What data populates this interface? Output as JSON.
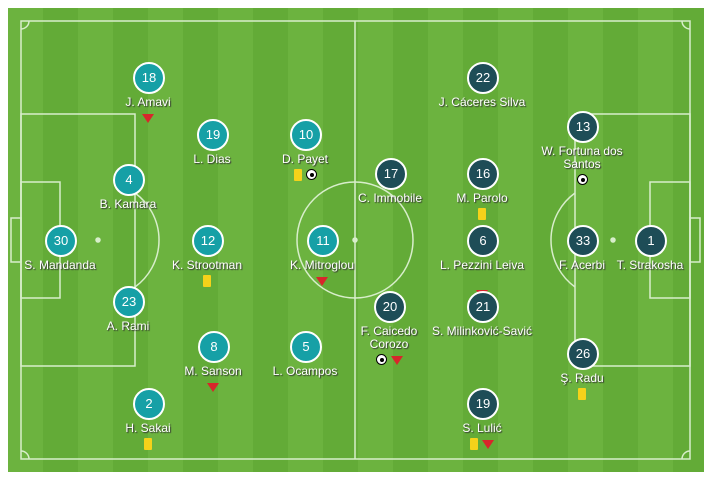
{
  "colors": {
    "home": "#16a0a6",
    "away": "#1e4d57",
    "pitch": "#6cb33f",
    "yellow_card": "#f5d21a",
    "sub_off": "#d8262b"
  },
  "home": [
    {
      "number": "18",
      "name": "J. Amavi",
      "events": [
        "sub-off"
      ]
    },
    {
      "number": "19",
      "name": "L. Dias",
      "events": []
    },
    {
      "number": "10",
      "name": "D. Payet",
      "events": [
        "yellow-card",
        "goal"
      ]
    },
    {
      "number": "4",
      "name": "B. Kamara",
      "events": []
    },
    {
      "number": "30",
      "name": "S. Mandanda",
      "events": []
    },
    {
      "number": "12",
      "name": "K. Strootman",
      "events": [
        "yellow-card"
      ]
    },
    {
      "number": "11",
      "name": "K. Mitroglou",
      "events": [
        "sub-off"
      ]
    },
    {
      "number": "23",
      "name": "A. Rami",
      "events": []
    },
    {
      "number": "8",
      "name": "M. Sanson",
      "events": [
        "sub-off"
      ]
    },
    {
      "number": "5",
      "name": "L. Ocampos",
      "events": []
    },
    {
      "number": "2",
      "name": "H. Sakai",
      "events": [
        "yellow-card"
      ]
    }
  ],
  "away": [
    {
      "number": "22",
      "name": "J. Cáceres Silva",
      "events": []
    },
    {
      "number": "13",
      "name": "W. Fortuna dos Santos",
      "events": [
        "goal"
      ]
    },
    {
      "number": "17",
      "name": "C. Immobile",
      "events": []
    },
    {
      "number": "16",
      "name": "M. Parolo",
      "events": [
        "yellow-card"
      ]
    },
    {
      "number": "6",
      "name": "L. Pezzini Leiva",
      "events": [
        "sub-off"
      ]
    },
    {
      "number": "33",
      "name": "F. Acerbi",
      "events": []
    },
    {
      "number": "1",
      "name": "T. Strakosha",
      "events": []
    },
    {
      "number": "20",
      "name": "F. Caicedo Corozo",
      "events": [
        "goal",
        "sub-off"
      ]
    },
    {
      "number": "21",
      "name": "S. Milinković-Savić",
      "events": []
    },
    {
      "number": "26",
      "name": "Ş. Radu",
      "events": [
        "yellow-card"
      ]
    },
    {
      "number": "19",
      "name": "S. Lulić",
      "events": [
        "yellow-card",
        "sub-off"
      ]
    }
  ]
}
